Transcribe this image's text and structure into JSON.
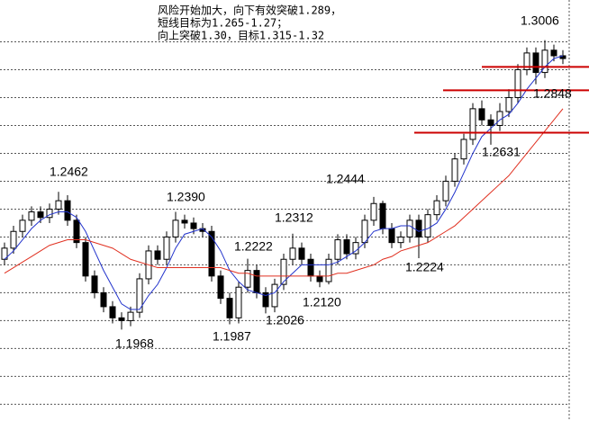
{
  "chart_data": {
    "type": "candlestick",
    "notes": [
      "风险开始加大，向下有效突破1.289，",
      "短线目标为1.265-1.27；",
      "向上突破1.30，目标1.315-1.32"
    ],
    "price_labels": [
      "1.3006",
      "1.2848",
      "1.2631",
      "1.2462",
      "1.2444",
      "1.2390",
      "1.2312",
      "1.2222",
      "1.2224",
      "1.2120",
      "1.2026",
      "1.1968",
      "1.1987"
    ],
    "ylim": [
      1.164,
      1.315
    ],
    "yticks": [
      1.17,
      1.18,
      1.19,
      1.2,
      1.21,
      1.22,
      1.23,
      1.24,
      1.25,
      1.26,
      1.27,
      1.28,
      1.29,
      1.3
    ],
    "grid": true,
    "up_color": "#ffffff",
    "down_color": "#000000",
    "open": [
      1.222,
      1.226,
      1.232,
      1.236,
      1.239,
      1.237,
      1.24,
      1.243,
      1.236,
      1.228,
      1.216,
      1.21,
      1.205,
      1.201,
      1.2,
      1.203,
      1.215,
      1.225,
      1.222,
      1.23,
      1.236,
      1.235,
      1.233,
      1.232,
      1.216,
      1.208,
      1.201,
      1.212,
      1.218,
      1.21,
      1.205,
      1.213,
      1.222,
      1.226,
      1.222,
      1.216,
      1.214,
      1.222,
      1.229,
      1.224,
      1.228,
      1.236,
      1.242,
      1.233,
      1.228,
      1.23,
      1.236,
      1.23,
      1.238,
      1.243,
      1.25,
      1.258,
      1.265,
      1.276,
      1.272,
      1.27,
      1.275,
      1.28,
      1.29,
      1.296,
      1.289,
      1.297,
      1.295
    ],
    "high": [
      1.228,
      1.234,
      1.238,
      1.241,
      1.241,
      1.242,
      1.2462,
      1.245,
      1.238,
      1.23,
      1.218,
      1.212,
      1.207,
      1.203,
      1.205,
      1.217,
      1.227,
      1.227,
      1.232,
      1.239,
      1.238,
      1.237,
      1.235,
      1.234,
      1.218,
      1.21,
      1.214,
      1.2222,
      1.22,
      1.212,
      1.215,
      1.224,
      1.2312,
      1.228,
      1.224,
      1.218,
      1.224,
      1.231,
      1.231,
      1.23,
      1.238,
      1.2444,
      1.243,
      1.235,
      1.232,
      1.238,
      1.238,
      1.24,
      1.245,
      1.252,
      1.26,
      1.267,
      1.278,
      1.279,
      1.274,
      1.278,
      1.283,
      1.292,
      1.298,
      1.298,
      1.3006,
      1.299,
      1.297
    ],
    "low": [
      1.22,
      1.224,
      1.23,
      1.234,
      1.235,
      1.235,
      1.238,
      1.234,
      1.226,
      1.214,
      1.208,
      1.203,
      1.199,
      1.1968,
      1.198,
      1.201,
      1.213,
      1.22,
      1.22,
      1.228,
      1.233,
      1.231,
      1.23,
      1.214,
      1.206,
      1.1987,
      1.199,
      1.21,
      1.208,
      1.2026,
      1.203,
      1.211,
      1.22,
      1.22,
      1.214,
      1.212,
      1.213,
      1.22,
      1.222,
      1.222,
      1.226,
      1.234,
      1.231,
      1.226,
      1.226,
      1.228,
      1.2224,
      1.228,
      1.236,
      1.241,
      1.248,
      1.256,
      1.263,
      1.27,
      1.2631,
      1.268,
      1.273,
      1.278,
      1.288,
      1.2848,
      1.287,
      1.293,
      1.292
    ],
    "close": [
      1.226,
      1.232,
      1.236,
      1.239,
      1.237,
      1.24,
      1.243,
      1.236,
      1.228,
      1.216,
      1.21,
      1.205,
      1.201,
      1.2,
      1.203,
      1.215,
      1.225,
      1.222,
      1.23,
      1.236,
      1.235,
      1.233,
      1.232,
      1.216,
      1.208,
      1.201,
      1.212,
      1.218,
      1.21,
      1.205,
      1.213,
      1.222,
      1.226,
      1.222,
      1.216,
      1.214,
      1.222,
      1.229,
      1.224,
      1.228,
      1.236,
      1.242,
      1.233,
      1.228,
      1.23,
      1.236,
      1.23,
      1.238,
      1.243,
      1.25,
      1.258,
      1.265,
      1.276,
      1.272,
      1.27,
      1.275,
      1.28,
      1.29,
      1.296,
      1.289,
      1.297,
      1.295,
      1.294
    ],
    "ma": [
      {
        "color": "#2233cc",
        "values": [
          1.222,
          1.225,
          1.229,
          1.233,
          1.236,
          1.238,
          1.239,
          1.239,
          1.237,
          1.232,
          1.225,
          1.218,
          1.212,
          1.206,
          1.204,
          1.204,
          1.209,
          1.213,
          1.219,
          1.226,
          1.231,
          1.232,
          1.233,
          1.23,
          1.225,
          1.218,
          1.214,
          1.211,
          1.21,
          1.209,
          1.21,
          1.214,
          1.217,
          1.22,
          1.22,
          1.22,
          1.22,
          1.221,
          1.223,
          1.225,
          1.228,
          1.232,
          1.233,
          1.233,
          1.234,
          1.234,
          1.232,
          1.233,
          1.235,
          1.24,
          1.246,
          1.253,
          1.26,
          1.266,
          1.269,
          1.272,
          1.274,
          1.278,
          1.283,
          1.287,
          1.291,
          1.294,
          1.295
        ]
      },
      {
        "color": "#e03020",
        "values": [
          1.217,
          1.219,
          1.221,
          1.223,
          1.225,
          1.227,
          1.228,
          1.229,
          1.229,
          1.229,
          1.228,
          1.227,
          1.226,
          1.224,
          1.222,
          1.221,
          1.22,
          1.219,
          1.219,
          1.219,
          1.219,
          1.219,
          1.219,
          1.219,
          1.219,
          1.218,
          1.217,
          1.217,
          1.216,
          1.216,
          1.216,
          1.216,
          1.216,
          1.216,
          1.216,
          1.216,
          1.216,
          1.217,
          1.217,
          1.218,
          1.219,
          1.22,
          1.222,
          1.223,
          1.225,
          1.226,
          1.227,
          1.228,
          1.23,
          1.232,
          1.234,
          1.237,
          1.24,
          1.243,
          1.246,
          1.249,
          1.252,
          1.256,
          1.26,
          1.264,
          1.268,
          1.272,
          1.276
        ]
      }
    ],
    "levels": {
      "color": "#cc0000",
      "values": [
        1.291,
        1.2826,
        1.2674
      ]
    }
  }
}
